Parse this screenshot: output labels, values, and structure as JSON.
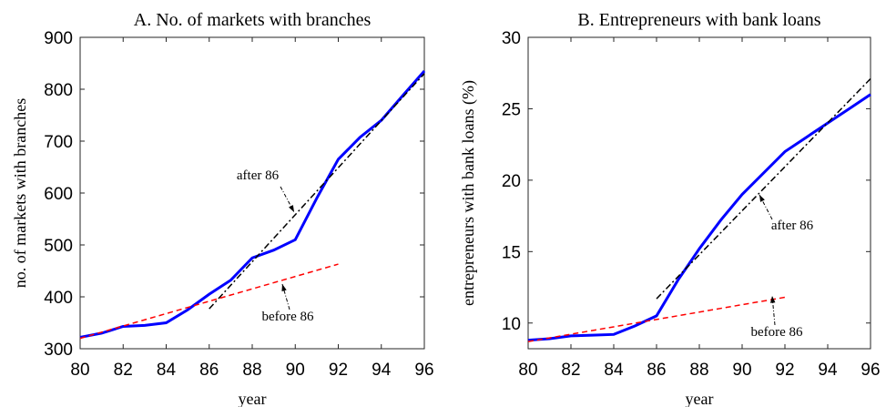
{
  "chart_data": [
    {
      "type": "line",
      "title": "A. No. of markets with branches",
      "xlabel": "year",
      "ylabel": "no. of markets with branches",
      "xlim": [
        80,
        96
      ],
      "xticks": [
        80,
        82,
        84,
        86,
        88,
        90,
        92,
        94,
        96
      ],
      "ylim": [
        300,
        900
      ],
      "yticks": [
        300,
        400,
        500,
        600,
        700,
        800,
        900
      ],
      "series": [
        {
          "color": "#0000ff",
          "x": [
            80,
            81,
            82,
            83,
            84,
            85,
            86,
            87,
            88,
            89,
            90,
            91,
            92,
            93,
            94,
            95,
            96
          ],
          "values": [
            322,
            330,
            343,
            345,
            350,
            375,
            405,
            432,
            475,
            490,
            510,
            590,
            665,
            707,
            740,
            788,
            835
          ]
        },
        {
          "name": "before 86",
          "color": "#ff0000",
          "x": [
            80,
            92
          ],
          "values": [
            320,
            463
          ]
        },
        {
          "name": "after 86",
          "color": "#000000",
          "x": [
            86,
            96
          ],
          "values": [
            377,
            830
          ]
        }
      ]
    },
    {
      "type": "line",
      "title": "B. Entrepreneurs with bank loans",
      "xlabel": "year",
      "ylabel": "entrepreneurs with bank loans (%)",
      "xlim": [
        80,
        96
      ],
      "xticks": [
        80,
        82,
        84,
        86,
        88,
        90,
        92,
        94,
        96
      ],
      "ylim": [
        8.2,
        30
      ],
      "yticks": [
        10,
        15,
        20,
        25,
        30
      ],
      "series": [
        {
          "color": "#0000ff",
          "x": [
            80,
            81,
            82,
            83,
            84,
            85,
            86,
            87,
            88,
            89,
            90,
            91,
            92,
            93,
            94,
            95,
            96
          ],
          "values": [
            8.8,
            8.9,
            9.1,
            9.15,
            9.2,
            9.8,
            10.5,
            13,
            15.2,
            17.2,
            19,
            20.5,
            22,
            23,
            24,
            25,
            26
          ]
        },
        {
          "name": "before 86",
          "color": "#ff0000",
          "x": [
            80,
            92
          ],
          "values": [
            8.7,
            11.8
          ]
        },
        {
          "name": "after 86",
          "color": "#000000",
          "x": [
            86,
            96
          ],
          "values": [
            11.7,
            27.1
          ]
        }
      ]
    }
  ]
}
